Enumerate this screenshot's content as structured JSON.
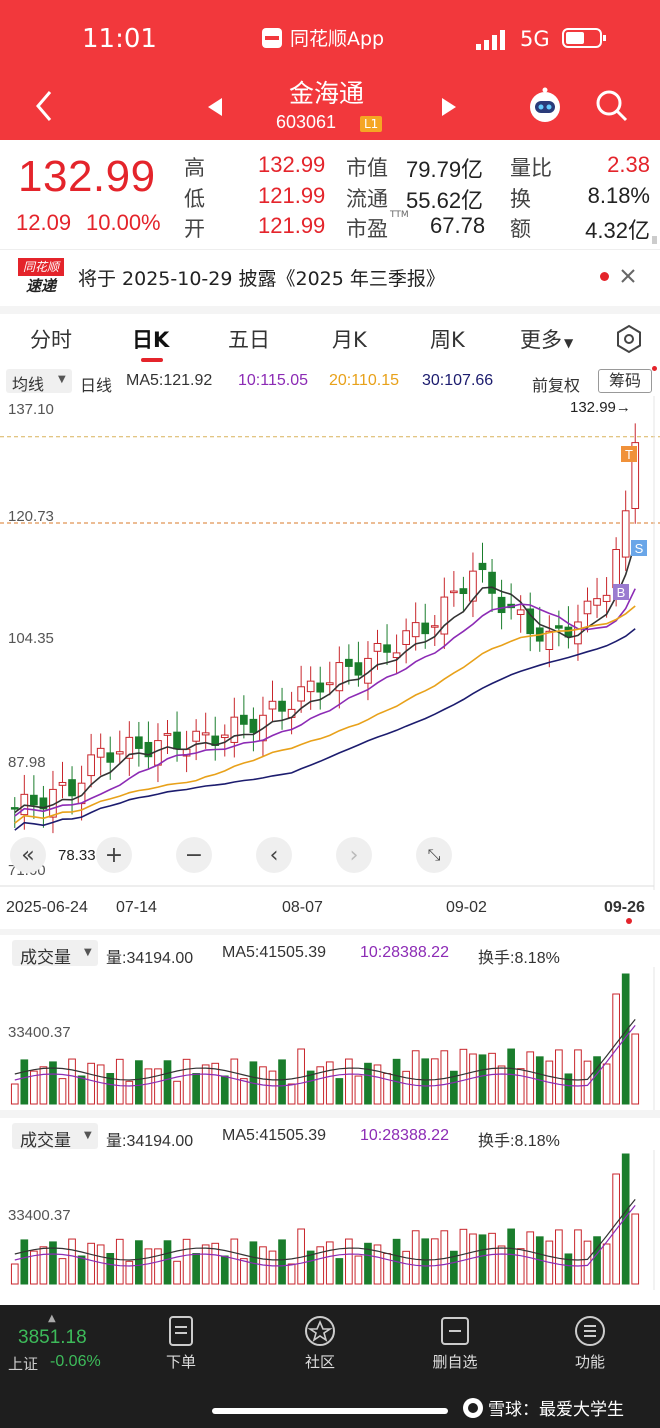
{
  "status_bar": {
    "time": "11:01",
    "app_name": "同花顺App",
    "network": "5G"
  },
  "nav": {
    "stock_name": "金海通",
    "stock_code": "603061",
    "level_badge": "L1"
  },
  "quote": {
    "price": "132.99",
    "change": "12.09",
    "change_pct": "10.00%",
    "fields": [
      {
        "label": "高",
        "value": "132.99"
      },
      {
        "label": "低",
        "value": "121.99"
      },
      {
        "label": "开",
        "value": "121.99"
      },
      {
        "label": "市值",
        "value": "79.79亿"
      },
      {
        "label": "流通",
        "value": "55.62亿"
      },
      {
        "label": "市盈",
        "sup": "TTM",
        "value": "67.78"
      },
      {
        "label": "量比",
        "value": "2.38"
      },
      {
        "label": "换",
        "value": "8.18%"
      },
      {
        "label": "额",
        "value": "4.32亿"
      }
    ]
  },
  "news": {
    "logo_top": "同花顺",
    "logo_bottom": "速递",
    "text": "将于 2025-10-29 披露《2025 年三季报》"
  },
  "tabs": [
    "分时",
    "日K",
    "五日",
    "月K",
    "周K",
    "更多"
  ],
  "active_tab": "日K",
  "chart_toolbar": {
    "indicator": "均线",
    "period": "日线",
    "ma5": "MA5:121.92",
    "ma10": "10:115.05",
    "ma20": "20:110.15",
    "ma30": "30:107.66",
    "adjust": "前复权",
    "chips": "筹码"
  },
  "price_axis": [
    "137.10",
    "120.73",
    "104.35",
    "87.98",
    "71.60"
  ],
  "chart_annotations": {
    "high_mark": "132.99→",
    "low_mark": "78.33",
    "badge_t": "T",
    "badge_s": "S",
    "badge_b": "B"
  },
  "date_axis": [
    "2025-06-24",
    "07-14",
    "08-07",
    "09-02",
    "09-26"
  ],
  "volume_panels": [
    {
      "title": "成交量",
      "vol": "量:34194.00",
      "ma5": "MA5:41505.39",
      "ma10": "10:28388.22",
      "turnover": "换手:8.18%",
      "axis_label": "33400.37"
    },
    {
      "title": "成交量",
      "vol": "量:34194.00",
      "ma5": "MA5:41505.39",
      "ma10": "10:28388.22",
      "turnover": "换手:8.18%",
      "axis_label": "33400.37"
    }
  ],
  "bottom_nav": {
    "index_value": "3851.18",
    "index_name": "上证",
    "index_change": "-0.06%",
    "items": [
      "下单",
      "社区",
      "删自选",
      "功能"
    ]
  },
  "watermark": "雪球：最爱大学生",
  "colors": {
    "header_red": "#f2383c",
    "up_red": "#e4242b",
    "down_green": "#1a7d2c",
    "ma5": "#333333",
    "ma10": "#8c2bb5",
    "ma20": "#e8a11a",
    "ma30": "#1c1c6e"
  }
}
